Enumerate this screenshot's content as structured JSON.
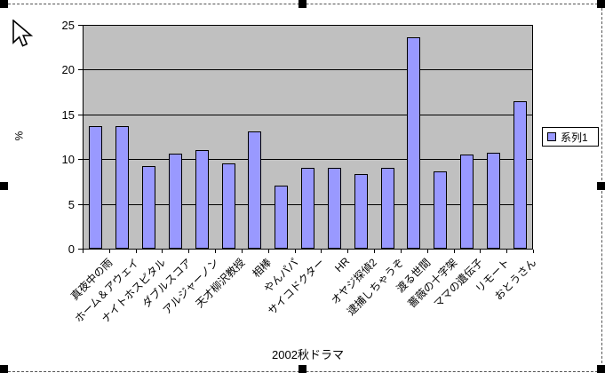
{
  "chart_data": {
    "type": "bar",
    "title": "",
    "xlabel": "2002秋ドラマ",
    "ylabel": "%",
    "ylim": [
      0,
      25
    ],
    "yticks": [
      0,
      5,
      10,
      15,
      20,
      25
    ],
    "grid": true,
    "legend_position": "right",
    "categories": [
      "真夜中の雨",
      "ホーム＆アウェイ",
      "ナイトホスピタル",
      "ダブルスコア",
      "アルジャーノン",
      "天才柳沢教授",
      "相棒",
      "やんパパ",
      "サイコドクター",
      "HR",
      "オヤジ探偵2",
      "逮捕しちゃうぞ",
      "渡る世間",
      "薔薇の十字架",
      "ママの遺伝子",
      "リモート",
      "おとうさん"
    ],
    "series": [
      {
        "name": "系列1",
        "values": [
          13.7,
          13.7,
          9.2,
          10.6,
          11.0,
          9.5,
          13.1,
          7.0,
          9.0,
          9.0,
          8.3,
          9.0,
          23.6,
          8.6,
          10.5,
          10.7,
          16.5
        ]
      }
    ],
    "colors": {
      "bar_fill": "#9999FF",
      "plot_background": "#C0C0C0",
      "gridline": "#000000",
      "chart_background": "#FFFFFF",
      "text": "#000000"
    }
  }
}
